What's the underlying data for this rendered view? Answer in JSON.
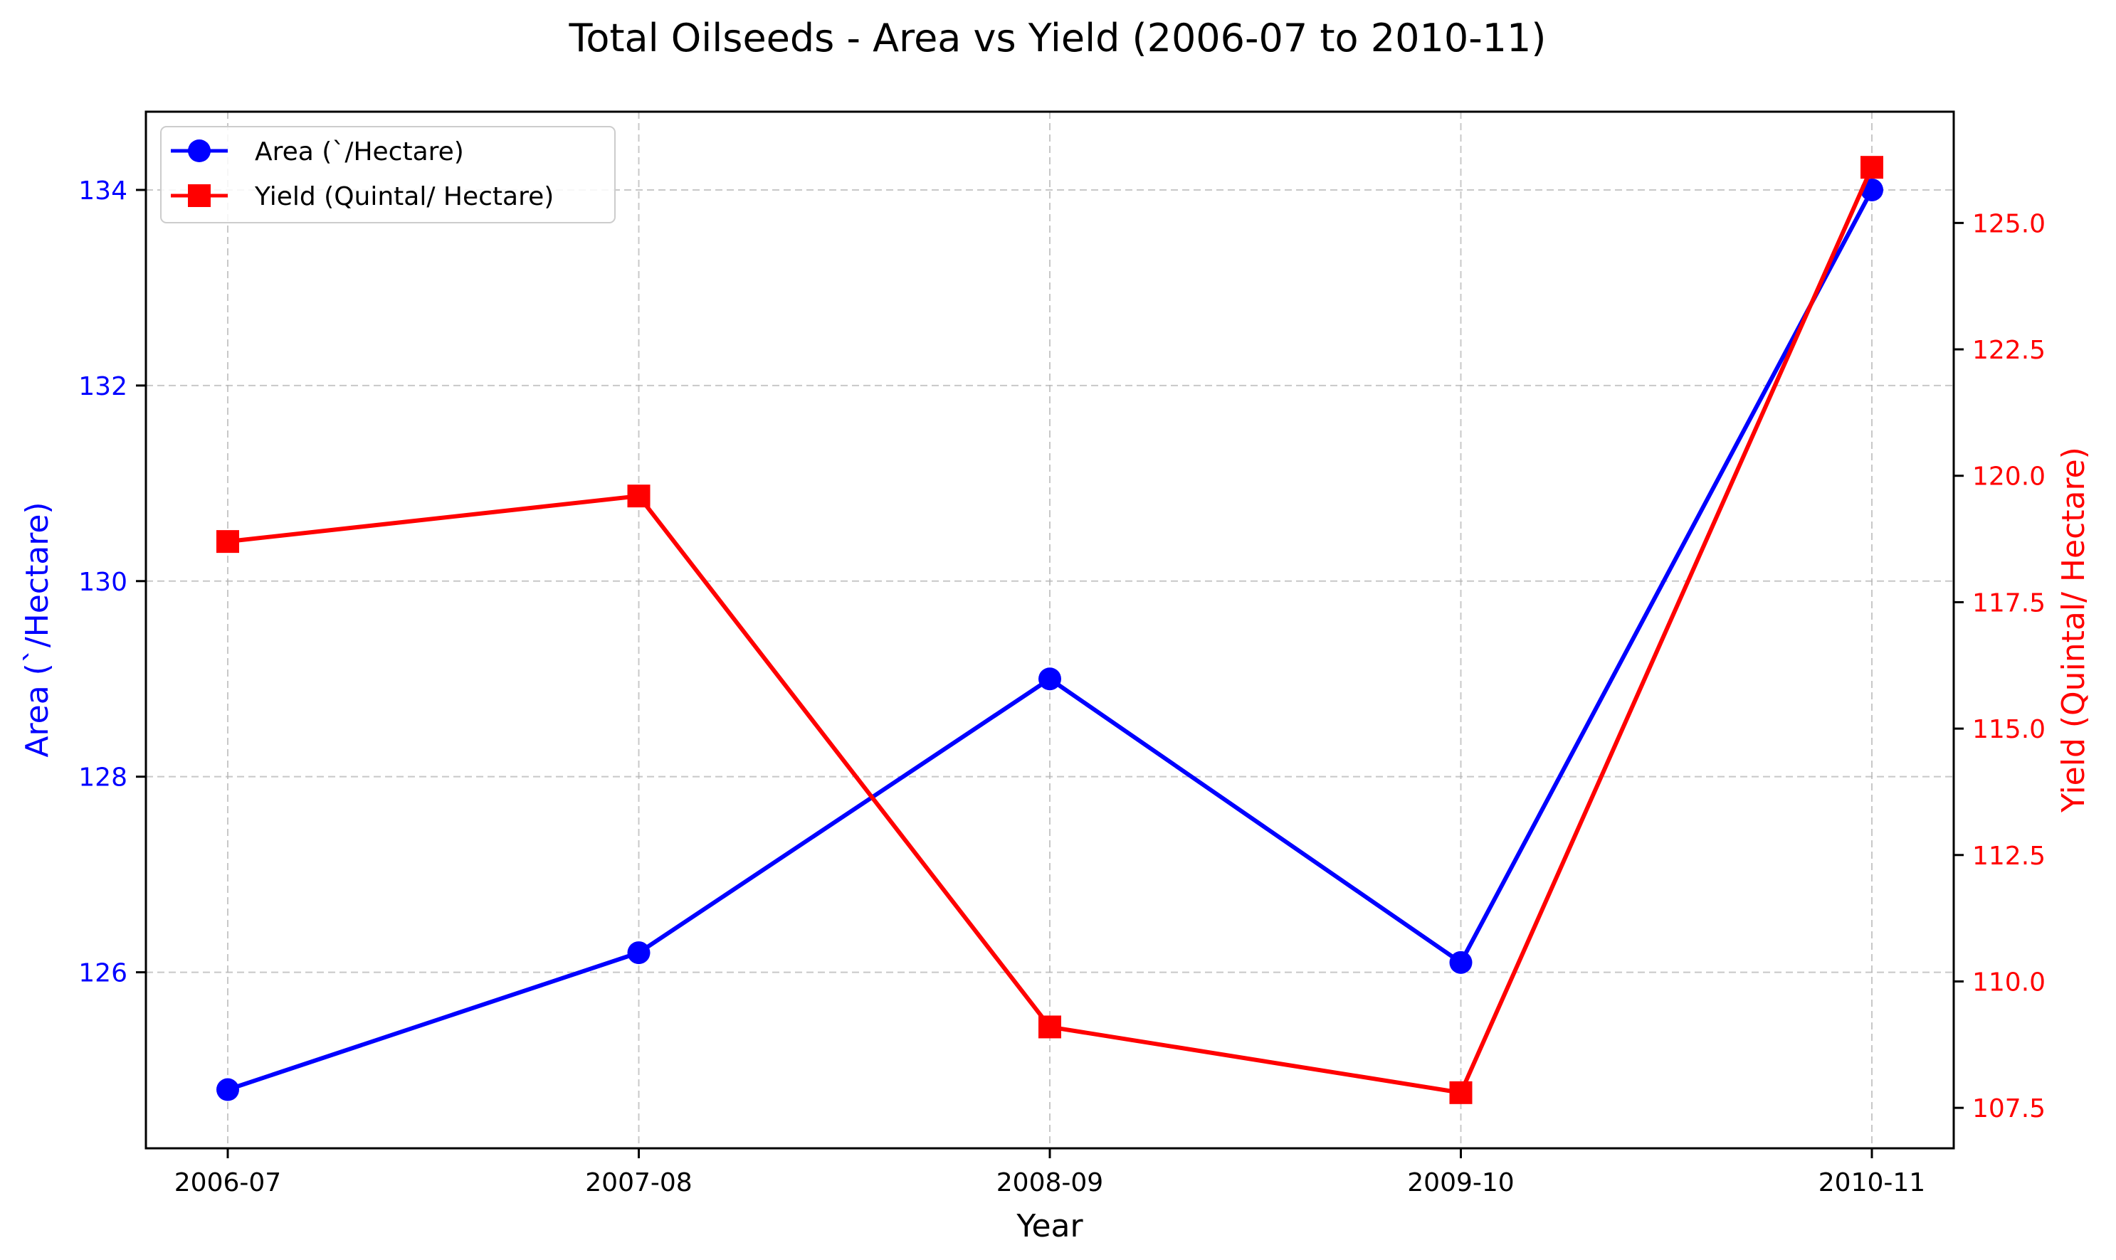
{
  "chart_data": {
    "type": "line",
    "title": "Total Oilseeds - Area vs Yield (2006-07 to 2010-11)",
    "xlabel": "Year",
    "categories": [
      "2006-07",
      "2007-08",
      "2008-09",
      "2009-10",
      "2010-11"
    ],
    "y_left": {
      "label": "Area (`/Hectare)",
      "ylim": [
        124.2,
        134.8
      ],
      "ticks": [
        126,
        128,
        130,
        132,
        134
      ],
      "color": "#0000ff"
    },
    "y_right": {
      "label": "Yield (Quintal/ Hectare)",
      "ylim": [
        106.7,
        127.2
      ],
      "ticks": [
        "107.5",
        "110.0",
        "112.5",
        "115.0",
        "117.5",
        "120.0",
        "122.5",
        "125.0"
      ],
      "color": "#ff0000"
    },
    "series": [
      {
        "name": "Area (`/Hectare)",
        "axis": "left",
        "marker": "circle",
        "color": "#0000ff",
        "values": [
          124.8,
          126.2,
          129.0,
          126.1,
          134.0
        ]
      },
      {
        "name": "Yield (Quintal/ Hectare)",
        "axis": "right",
        "marker": "square",
        "color": "#ff0000",
        "values": [
          118.7,
          119.6,
          109.1,
          107.8,
          126.1
        ]
      }
    ],
    "grid": true,
    "grid_style": "dashed",
    "legend_position": "top-left"
  }
}
